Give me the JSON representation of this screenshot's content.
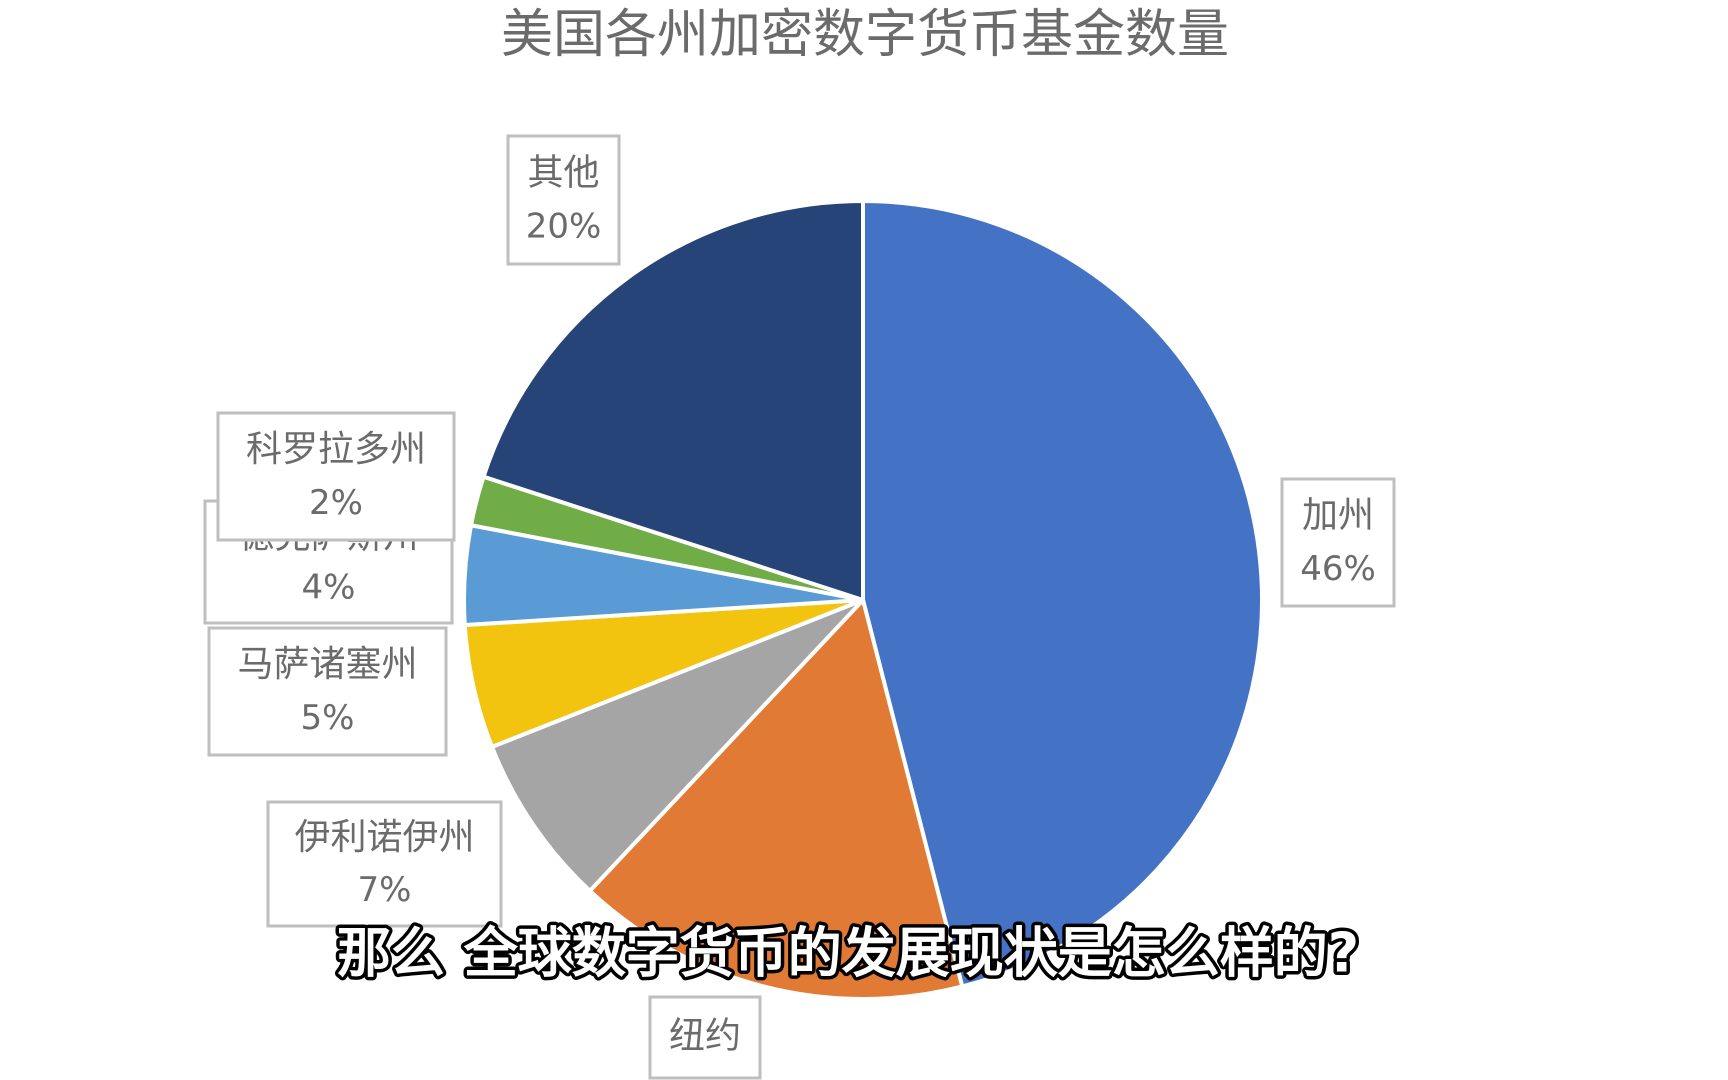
{
  "chart_data": {
    "type": "pie",
    "title": "美国各州加密数字货币基金数量",
    "categories": [
      "加州",
      "纽约",
      "伊利诺伊州",
      "马萨诸塞州",
      "德克萨斯州",
      "科罗拉多州",
      "其他"
    ],
    "values": [
      46,
      16,
      7,
      5,
      4,
      2,
      20
    ],
    "value_labels": [
      "46%",
      null,
      "7%",
      "5%",
      "4%",
      "2%",
      "20%"
    ],
    "colors": [
      "#4472c4",
      "#e07a35",
      "#a5a5a5",
      "#f2c40f",
      "#5b9bd5",
      "#70ad47",
      "#264478"
    ],
    "caption": "那么 全球数字货币的发展现状是怎么样的?"
  }
}
